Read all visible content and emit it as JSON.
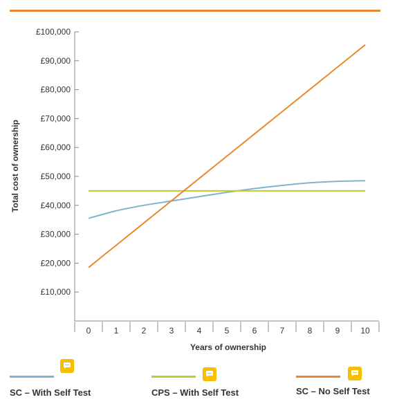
{
  "chart_data": {
    "type": "line",
    "title": "",
    "xlabel": "Years of ownership",
    "ylabel": "Total cost of ownership",
    "x": [
      0,
      1,
      2,
      3,
      4,
      5,
      6,
      7,
      8,
      9,
      10
    ],
    "x_ticks": [
      "0",
      "1",
      "2",
      "3",
      "4",
      "5",
      "6",
      "7",
      "8",
      "9",
      "10"
    ],
    "y_ticks": [
      "£10,000",
      "£20,000",
      "£30,000",
      "£40,000",
      "£50,000",
      "£60,000",
      "£70,000",
      "£80,000",
      "£90,000",
      "£100,000"
    ],
    "ylim": [
      0,
      100000
    ],
    "xlim": [
      -0.5,
      10.5
    ],
    "grid": false,
    "legend_position": "bottom",
    "series": [
      {
        "name": "SC – With Self Test",
        "color": "#7FB2CE",
        "values": [
          35500,
          38100,
          40000,
          41500,
          43000,
          44500,
          45800,
          46900,
          47800,
          48300,
          48500
        ]
      },
      {
        "name": "CPS – With Self Test",
        "color": "#BFCC2A",
        "values": [
          45000,
          45000,
          45000,
          45000,
          45000,
          45000,
          45000,
          45000,
          45000,
          45000,
          45000
        ]
      },
      {
        "name": "SC – No Self Test",
        "color": "#E8892B",
        "values": [
          18500,
          26200,
          33900,
          41600,
          49300,
          57000,
          64700,
          72400,
          80100,
          87800,
          95500
        ]
      }
    ]
  },
  "legend": {
    "items": [
      {
        "label": "SC – With Self Test",
        "icon": "comment-icon",
        "color": "#7FB2CE"
      },
      {
        "label": "CPS – With Self Test",
        "icon": "comment-icon",
        "color": "#BFCC2A"
      },
      {
        "label": "SC – No Self Test",
        "icon": "comment-icon",
        "color": "#E8892B"
      }
    ]
  },
  "colors": {
    "accent_rule": "#E8892B",
    "axis": "#888888",
    "comment_badge": "#F5C000"
  }
}
